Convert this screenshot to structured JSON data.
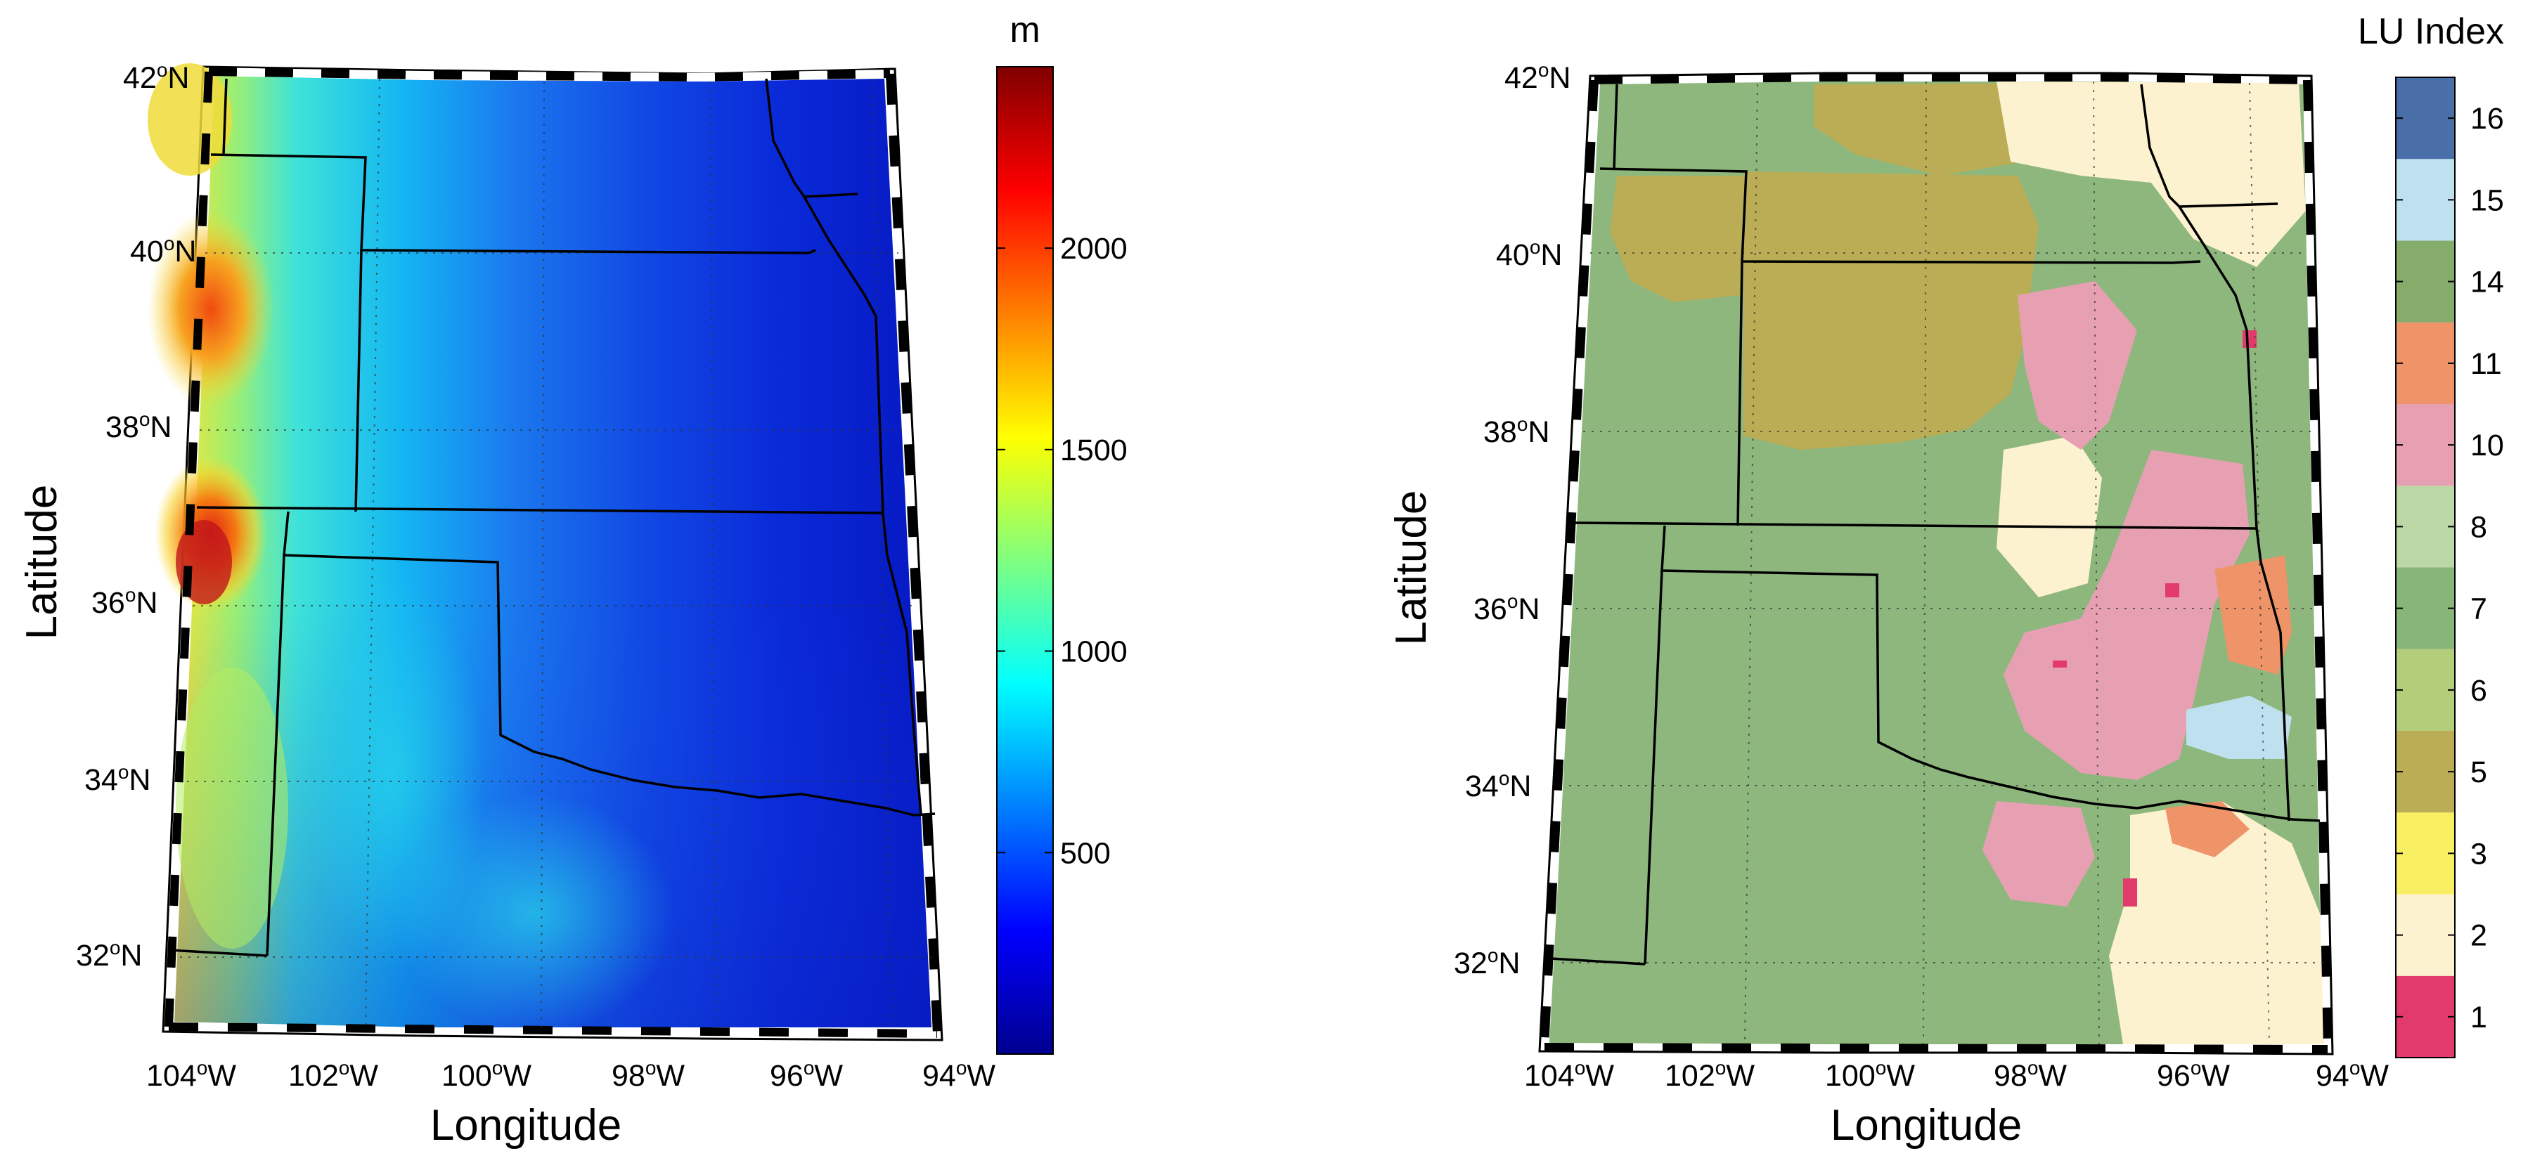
{
  "left_map": {
    "colorbar": {
      "title": "m",
      "ticks": [
        "500",
        "1000",
        "1500",
        "2000"
      ],
      "range": [
        0,
        2450
      ],
      "colormap": "jet"
    },
    "xlabel": "Longitude",
    "ylabel": "Latitude"
  },
  "right_map": {
    "colorbar": {
      "title": "LU Index",
      "ticks": [
        "1",
        "2",
        "3",
        "5",
        "6",
        "7",
        "8",
        "10",
        "11",
        "14",
        "15",
        "16"
      ],
      "colors": [
        "#e23a6c",
        "#fdf2cf",
        "#f8ef62",
        "#bbad55",
        "#b4cd7b",
        "#88b578",
        "#bcd8a6",
        "#e6a0b2",
        "#ee9468",
        "#86ac6c",
        "#bfe1ef",
        "#496ea8"
      ]
    },
    "xlabel": "Longitude",
    "ylabel": "Latitude",
    "legend_colors": {
      "grass": "#8db77d",
      "dryland": "#bbad55",
      "urban": "#e23a6c",
      "cropland": "#fdf2cf",
      "savanna": "#e6a0b2",
      "forest": "#ee9468",
      "water": "#bfe1ef"
    }
  },
  "lat_ticks": [
    "42",
    "40",
    "38",
    "36",
    "34",
    "32"
  ],
  "lon_ticks": [
    "104",
    "102",
    "100",
    "98",
    "96",
    "94"
  ],
  "lat_suffix": "N",
  "lon_suffix": "W",
  "degree_symbol": "o"
}
